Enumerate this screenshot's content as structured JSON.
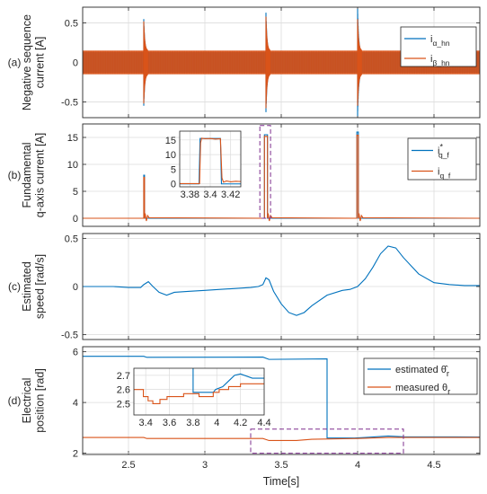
{
  "colors": {
    "blue": "#0072BD",
    "orange": "#D95319",
    "dashbox": "#7E2F8E",
    "axis": "#262626",
    "grid": "#dcdcdc"
  },
  "chart_data": [
    {
      "type": "line",
      "panel_label": "(a)",
      "ylabel_lines": [
        "Negative sequence",
        "current [A]"
      ],
      "xlim": [
        2.2,
        4.8
      ],
      "ylim": [
        -0.7,
        0.7
      ],
      "yticks": [
        -0.5,
        0,
        0.5
      ],
      "ytick_labels": [
        "-0.5",
        "0",
        "0.5"
      ],
      "grid": true,
      "legend_position": "top-right",
      "series": [
        {
          "name": "i_α_hn",
          "legend_main": "i",
          "legend_sub": "α_hn",
          "color_key": "blue",
          "band_amplitude": 0.13,
          "bursts": [
            {
              "x": 2.6,
              "peak": 0.55
            },
            {
              "x": 3.4,
              "peak": 0.63
            },
            {
              "x": 4.0,
              "peak": 0.68
            }
          ]
        },
        {
          "name": "i_β_hn",
          "legend_main": "i",
          "legend_sub": "β_hn",
          "color_key": "orange",
          "band_amplitude": 0.15,
          "bursts": [
            {
              "x": 2.6,
              "peak": 0.52
            },
            {
              "x": 3.4,
              "peak": 0.58
            },
            {
              "x": 4.0,
              "peak": 0.55
            }
          ]
        }
      ]
    },
    {
      "type": "line",
      "panel_label": "(b)",
      "ylabel_lines": [
        "Fundamental",
        "q-axis current [A]"
      ],
      "xlim": [
        2.2,
        4.8
      ],
      "ylim": [
        -1.5,
        17.5
      ],
      "yticks": [
        0,
        5,
        10,
        15
      ],
      "ytick_labels": [
        "0",
        "5",
        "10",
        "15"
      ],
      "grid": true,
      "legend_position": "top-right",
      "series": [
        {
          "name": "i*_q_f",
          "legend_main": "i",
          "legend_sup": "*",
          "legend_sub": "q_f",
          "color_key": "blue",
          "pulses": [
            {
              "start": 2.6,
              "end": 2.605,
              "value": 8
            },
            {
              "start": 3.39,
              "end": 3.41,
              "value": 15.5
            },
            {
              "start": 3.995,
              "end": 4.005,
              "value": 16
            }
          ]
        },
        {
          "name": "i_q_f",
          "legend_main": "i",
          "legend_sub": "q_f",
          "color_key": "orange",
          "pulses": [
            {
              "start": 2.6,
              "end": 2.605,
              "value": 7.6
            },
            {
              "start": 3.39,
              "end": 3.41,
              "value": 15.2
            },
            {
              "start": 3.995,
              "end": 4.005,
              "value": 15.4
            }
          ]
        }
      ],
      "inset": {
        "xlim": [
          3.37,
          3.43
        ],
        "ylim": [
          -1,
          18
        ],
        "xticks": [
          3.38,
          3.4,
          3.42
        ],
        "xtick_labels": [
          "3.38",
          "3.4",
          "3.42"
        ],
        "yticks": [
          0,
          5,
          10,
          15
        ],
        "ytick_labels": [
          "0",
          "5",
          "10",
          "15"
        ],
        "ref_points": [
          [
            3.37,
            0
          ],
          [
            3.389,
            0
          ],
          [
            3.39,
            15.5
          ],
          [
            3.41,
            15.5
          ],
          [
            3.411,
            0
          ],
          [
            3.43,
            0
          ]
        ],
        "meas_points": [
          [
            3.37,
            0.1
          ],
          [
            3.3895,
            0.1
          ],
          [
            3.3905,
            14
          ],
          [
            3.3915,
            15.6
          ],
          [
            3.395,
            15.4
          ],
          [
            3.4,
            15.5
          ],
          [
            3.405,
            15.3
          ],
          [
            3.41,
            15.4
          ],
          [
            3.4115,
            2
          ],
          [
            3.413,
            0.6
          ],
          [
            3.416,
            1.0
          ],
          [
            3.42,
            0.7
          ],
          [
            3.425,
            0.9
          ],
          [
            3.43,
            0.8
          ]
        ]
      },
      "zoom_box": {
        "x": [
          3.36,
          3.43
        ],
        "y": [
          0,
          17.2
        ]
      }
    },
    {
      "type": "line",
      "panel_label": "(c)",
      "ylabel_lines": [
        "Estimated",
        "speed [rad/s]"
      ],
      "xlim": [
        2.2,
        4.8
      ],
      "ylim": [
        -0.55,
        0.55
      ],
      "yticks": [
        -0.5,
        0,
        0.5
      ],
      "ytick_labels": [
        "-0.5",
        "0",
        "0.5"
      ],
      "grid": true,
      "series": [
        {
          "name": "estimated speed",
          "color_key": "blue",
          "points": [
            [
              2.2,
              0.0
            ],
            [
              2.3,
              0.0
            ],
            [
              2.4,
              0.0
            ],
            [
              2.5,
              -0.01
            ],
            [
              2.58,
              -0.01
            ],
            [
              2.6,
              0.02
            ],
            [
              2.63,
              0.05
            ],
            [
              2.66,
              0.0
            ],
            [
              2.7,
              -0.06
            ],
            [
              2.75,
              -0.09
            ],
            [
              2.8,
              -0.06
            ],
            [
              2.9,
              -0.05
            ],
            [
              3.0,
              -0.04
            ],
            [
              3.1,
              -0.03
            ],
            [
              3.2,
              -0.02
            ],
            [
              3.3,
              -0.01
            ],
            [
              3.35,
              0.0
            ],
            [
              3.38,
              0.02
            ],
            [
              3.4,
              0.09
            ],
            [
              3.42,
              0.07
            ],
            [
              3.45,
              -0.05
            ],
            [
              3.5,
              -0.18
            ],
            [
              3.55,
              -0.27
            ],
            [
              3.6,
              -0.3
            ],
            [
              3.65,
              -0.27
            ],
            [
              3.7,
              -0.2
            ],
            [
              3.8,
              -0.09
            ],
            [
              3.9,
              -0.04
            ],
            [
              3.95,
              -0.03
            ],
            [
              4.0,
              0.0
            ],
            [
              4.05,
              0.08
            ],
            [
              4.1,
              0.2
            ],
            [
              4.15,
              0.34
            ],
            [
              4.2,
              0.42
            ],
            [
              4.25,
              0.4
            ],
            [
              4.3,
              0.3
            ],
            [
              4.4,
              0.13
            ],
            [
              4.5,
              0.04
            ],
            [
              4.6,
              0.02
            ],
            [
              4.7,
              0.01
            ],
            [
              4.8,
              0.01
            ]
          ]
        }
      ]
    },
    {
      "type": "line",
      "panel_label": "(d)",
      "ylabel_lines": [
        "Electrical",
        "position [rad]"
      ],
      "xlim": [
        2.2,
        4.8
      ],
      "xticks": [
        2.5,
        3,
        3.5,
        4,
        4.5
      ],
      "xtick_labels": [
        "2.5",
        "3",
        "3.5",
        "4",
        "4.5"
      ],
      "xlabel": "Time[s]",
      "ylim": [
        1.95,
        6.2
      ],
      "yticks": [
        2,
        4,
        6
      ],
      "ytick_labels": [
        "2",
        "4",
        "6"
      ],
      "grid": true,
      "legend_position": "top-right",
      "series": [
        {
          "name": "estimated θ̂r",
          "legend_text": "estimated θ̂",
          "legend_sub": "r",
          "color_key": "blue",
          "points": [
            [
              2.2,
              5.82
            ],
            [
              2.6,
              5.82
            ],
            [
              2.62,
              5.78
            ],
            [
              3.38,
              5.79
            ],
            [
              3.42,
              5.7
            ],
            [
              3.8,
              5.72
            ],
            [
              3.8,
              2.6
            ],
            [
              3.98,
              2.6
            ],
            [
              4.05,
              2.62
            ],
            [
              4.2,
              2.68
            ],
            [
              4.3,
              2.65
            ],
            [
              4.8,
              2.64
            ]
          ]
        },
        {
          "name": "measured θr",
          "legend_text": "measured θ",
          "legend_sub": "r",
          "color_key": "orange",
          "points": [
            [
              2.2,
              2.62
            ],
            [
              2.6,
              2.62
            ],
            [
              2.62,
              2.58
            ],
            [
              3.38,
              2.58
            ],
            [
              3.42,
              2.5
            ],
            [
              3.6,
              2.5
            ],
            [
              3.7,
              2.55
            ],
            [
              4.0,
              2.58
            ],
            [
              4.2,
              2.62
            ],
            [
              4.8,
              2.62
            ]
          ]
        }
      ],
      "inset": {
        "xlim": [
          3.3,
          4.4
        ],
        "ylim": [
          2.42,
          2.75
        ],
        "xticks": [
          3.4,
          3.6,
          3.8,
          4,
          4.2,
          4.4
        ],
        "xtick_labels": [
          "3.4",
          "3.6",
          "3.8",
          "4",
          "4.2",
          "4.4"
        ],
        "yticks": [
          2.5,
          2.6,
          2.7
        ],
        "ytick_labels": [
          "2.5",
          "2.6",
          "2.7"
        ],
        "ref_points": [
          [
            3.8,
            2.75
          ],
          [
            3.8,
            2.58
          ],
          [
            3.97,
            2.58
          ],
          [
            3.99,
            2.6
          ],
          [
            4.05,
            2.62
          ],
          [
            4.1,
            2.66
          ],
          [
            4.15,
            2.7
          ],
          [
            4.2,
            2.71
          ],
          [
            4.3,
            2.68
          ],
          [
            4.4,
            2.68
          ]
        ],
        "meas_points": [
          [
            3.3,
            2.6
          ],
          [
            3.38,
            2.6
          ],
          [
            3.38,
            2.55
          ],
          [
            3.42,
            2.55
          ],
          [
            3.42,
            2.52
          ],
          [
            3.46,
            2.52
          ],
          [
            3.46,
            2.5
          ],
          [
            3.52,
            2.5
          ],
          [
            3.52,
            2.53
          ],
          [
            3.58,
            2.53
          ],
          [
            3.58,
            2.55
          ],
          [
            3.72,
            2.55
          ],
          [
            3.72,
            2.57
          ],
          [
            3.85,
            2.57
          ],
          [
            3.85,
            2.55
          ],
          [
            3.97,
            2.55
          ],
          [
            3.97,
            2.58
          ],
          [
            4.02,
            2.58
          ],
          [
            4.02,
            2.6
          ],
          [
            4.1,
            2.6
          ],
          [
            4.1,
            2.62
          ],
          [
            4.2,
            2.62
          ],
          [
            4.2,
            2.64
          ],
          [
            4.4,
            2.64
          ]
        ]
      },
      "zoom_box": {
        "x": [
          3.3,
          4.3
        ],
        "y": [
          2.0,
          2.95
        ]
      }
    }
  ]
}
